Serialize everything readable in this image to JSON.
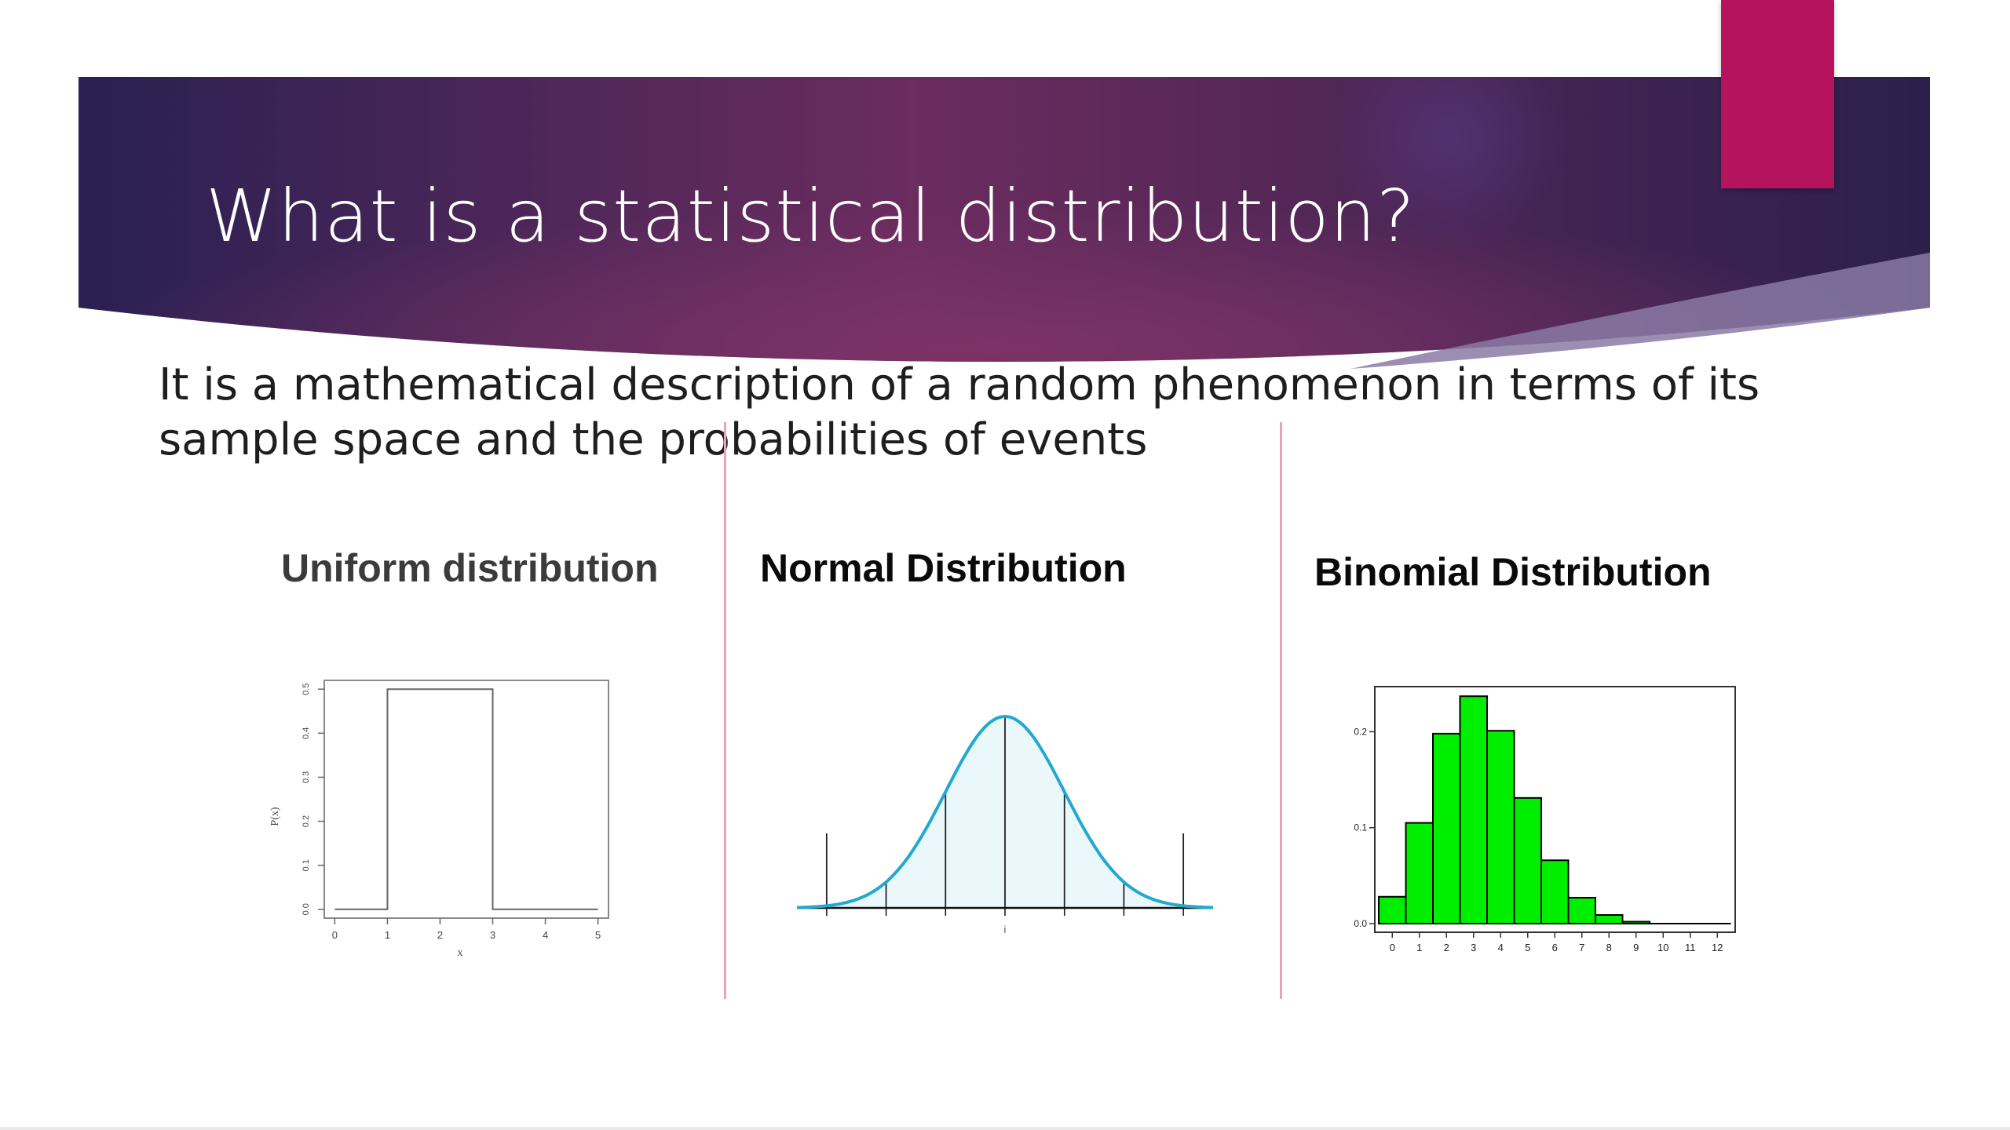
{
  "slide": {
    "title": "What is a statistical distribution?",
    "description": "It is a mathematical description of a random phenomenon in terms of its sample space and the probabilities of events",
    "colors": {
      "banner_dark": "#2c1f4c",
      "banner_mid": "#6b2c5e",
      "accent_tab": "#b5135e",
      "divider": "#e8a5b5"
    }
  },
  "panels": [
    {
      "title": "Uniform distribution"
    },
    {
      "title": "Normal Distribution"
    },
    {
      "title": "Binomial Distribution"
    }
  ],
  "chart_data": [
    {
      "type": "line",
      "title": "Uniform distribution",
      "xlabel": "x",
      "ylabel": "P(x)",
      "x": [
        0,
        1,
        1,
        3,
        3,
        5
      ],
      "y": [
        0,
        0,
        0.5,
        0.5,
        0,
        0
      ],
      "xticks": [
        "0",
        "1",
        "2",
        "3",
        "4",
        "5"
      ],
      "yticks": [
        "0.0",
        "0.1",
        "0.2",
        "0.3",
        "0.4",
        "0.5"
      ],
      "xlim": [
        -0.2,
        5.2
      ],
      "ylim": [
        -0.02,
        0.52
      ],
      "grid": false,
      "colors": {
        "line": "#666666",
        "frame": "#8a8a8a"
      }
    },
    {
      "type": "area",
      "title": "Normal Distribution",
      "mean": 0,
      "sd": 1,
      "xlim": [
        -3.5,
        3.5
      ],
      "xticks": [
        "",
        "",
        "",
        "",
        "",
        "",
        ""
      ],
      "xtick_positions": [
        -3,
        -2,
        -1,
        0,
        1,
        2,
        3
      ],
      "vertical_lines_at": [
        -3,
        -2,
        -1,
        0,
        1,
        2,
        3
      ],
      "xlabel": "i",
      "grid": false,
      "colors": {
        "curve": "#21a9cf",
        "fill": "#eaf7fb",
        "lines": "#222222"
      }
    },
    {
      "type": "bar",
      "title": "Binomial Distribution",
      "categories": [
        "0",
        "1",
        "2",
        "3",
        "4",
        "5",
        "6",
        "7",
        "8",
        "9",
        "10",
        "11",
        "12"
      ],
      "values": [
        0.028,
        0.105,
        0.198,
        0.237,
        0.201,
        0.131,
        0.066,
        0.027,
        0.009,
        0.002,
        0.0,
        0.0,
        0.0
      ],
      "yticks": [
        "0.0",
        "0.1",
        "0.2"
      ],
      "ylim": [
        -0.009,
        0.247
      ],
      "grid": false,
      "colors": {
        "bar": "#00ee00",
        "bar_stroke": "#000000",
        "frame": "#333333"
      }
    }
  ]
}
